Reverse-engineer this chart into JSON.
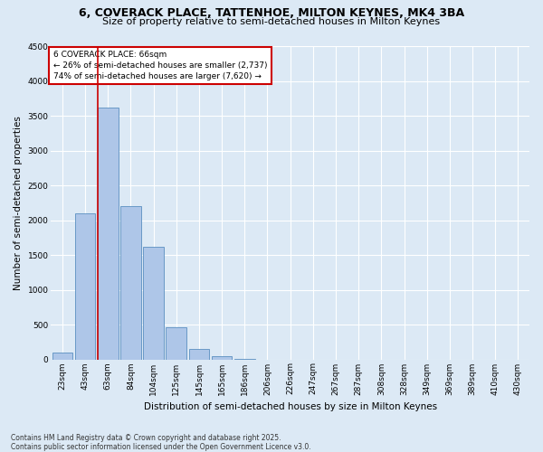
{
  "title1": "6, COVERACK PLACE, TATTENHOE, MILTON KEYNES, MK4 3BA",
  "title2": "Size of property relative to semi-detached houses in Milton Keynes",
  "xlabel": "Distribution of semi-detached houses by size in Milton Keynes",
  "ylabel": "Number of semi-detached properties",
  "property_label": "6 COVERACK PLACE: 66sqm",
  "pct_smaller": 26,
  "pct_larger": 74,
  "n_smaller": 2737,
  "n_larger": 7620,
  "categories": [
    "23sqm",
    "43sqm",
    "63sqm",
    "84sqm",
    "104sqm",
    "125sqm",
    "145sqm",
    "165sqm",
    "186sqm",
    "206sqm",
    "226sqm",
    "247sqm",
    "267sqm",
    "287sqm",
    "308sqm",
    "328sqm",
    "349sqm",
    "369sqm",
    "389sqm",
    "410sqm",
    "430sqm"
  ],
  "values": [
    100,
    2100,
    3620,
    2200,
    1620,
    460,
    155,
    50,
    10,
    0,
    0,
    0,
    0,
    0,
    0,
    0,
    0,
    0,
    0,
    0,
    0
  ],
  "bar_color": "#aec6e8",
  "bar_edge_color": "#5a8fc0",
  "vline_color": "#cc0000",
  "vline_x": 1.55,
  "annotation_box_color": "#cc0000",
  "background_color": "#dce9f5",
  "ylim": [
    0,
    4500
  ],
  "yticks": [
    0,
    500,
    1000,
    1500,
    2000,
    2500,
    3000,
    3500,
    4000,
    4500
  ],
  "footnote": "Contains HM Land Registry data © Crown copyright and database right 2025.\nContains public sector information licensed under the Open Government Licence v3.0.",
  "title1_fontsize": 9,
  "title2_fontsize": 8,
  "axis_label_fontsize": 7.5,
  "tick_fontsize": 6.5,
  "annotation_fontsize": 6.5,
  "footnote_fontsize": 5.5
}
